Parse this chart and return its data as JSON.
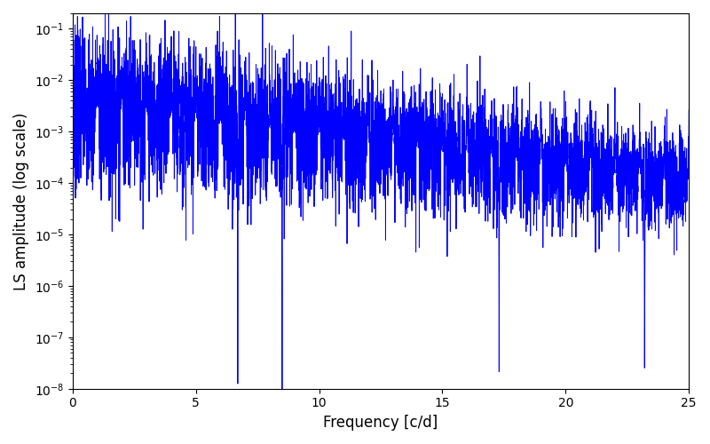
{
  "xlabel": "Frequency [c/d]",
  "ylabel": "LS amplitude (log scale)",
  "xlim": [
    0,
    25
  ],
  "ylim": [
    1e-08,
    0.2
  ],
  "line_color": "#0000FF",
  "line_width": 0.7,
  "background_color": "#ffffff",
  "seed": 7,
  "n_points": 6000,
  "freq_max": 25.0,
  "obs_duration_days": 200.0,
  "sampling_cadence": 1.0
}
